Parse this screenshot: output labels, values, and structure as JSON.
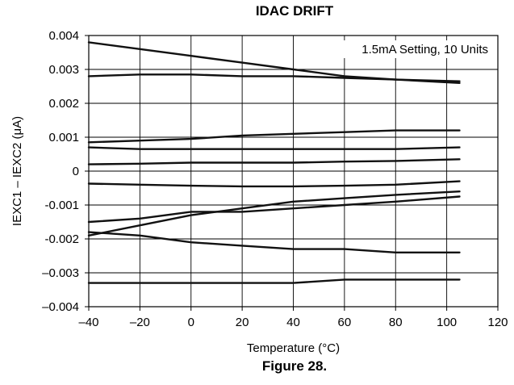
{
  "figure_caption": "Figure 28.",
  "chart_data": {
    "type": "line",
    "title": "IDAC DRIFT",
    "xlabel": "Temperature (°C)",
    "ylabel": "IEXC1 – IEXC2 (μA)",
    "xlim": [
      -40,
      120
    ],
    "ylim": [
      -0.004,
      0.004
    ],
    "xticks": [
      -40,
      -20,
      0,
      20,
      40,
      60,
      80,
      100,
      120
    ],
    "xtick_labels": [
      "–40",
      "–20",
      "0",
      "20",
      "40",
      "60",
      "80",
      "100",
      "120"
    ],
    "yticks": [
      0.004,
      0.003,
      0.002,
      0.001,
      0,
      -0.001,
      -0.002,
      -0.003,
      -0.004
    ],
    "ytick_labels": [
      "0.004",
      "0.003",
      "0.002",
      "0.001",
      "0",
      "-0.001",
      "-0.002",
      "–0.003",
      "–0.004"
    ],
    "grid": true,
    "annotation": "1.5mA Setting, 10 Units",
    "series": [
      {
        "x": [
          -40,
          -20,
          0,
          20,
          40,
          60,
          80,
          105
        ],
        "y": [
          0.0038,
          0.0036,
          0.0034,
          0.0032,
          0.003,
          0.0028,
          0.0027,
          0.0026
        ]
      },
      {
        "x": [
          -40,
          -20,
          0,
          20,
          40,
          60,
          80,
          105
        ],
        "y": [
          0.0028,
          0.00285,
          0.00285,
          0.0028,
          0.0028,
          0.00275,
          0.0027,
          0.00265
        ]
      },
      {
        "x": [
          -40,
          -20,
          0,
          20,
          40,
          60,
          80,
          105
        ],
        "y": [
          0.00085,
          0.0009,
          0.00095,
          0.00105,
          0.0011,
          0.00115,
          0.0012,
          0.0012
        ]
      },
      {
        "x": [
          -40,
          -20,
          0,
          20,
          40,
          60,
          80,
          105
        ],
        "y": [
          0.0007,
          0.00065,
          0.00065,
          0.00065,
          0.00065,
          0.00065,
          0.00065,
          0.0007
        ]
      },
      {
        "x": [
          -40,
          -20,
          0,
          20,
          40,
          60,
          80,
          105
        ],
        "y": [
          0.0002,
          0.00022,
          0.00025,
          0.00025,
          0.00025,
          0.00028,
          0.0003,
          0.00035
        ]
      },
      {
        "x": [
          -40,
          -20,
          0,
          20,
          40,
          60,
          80,
          105
        ],
        "y": [
          -0.00037,
          -0.0004,
          -0.00043,
          -0.00045,
          -0.00045,
          -0.00043,
          -0.0004,
          -0.0003
        ]
      },
      {
        "x": [
          -40,
          -20,
          0,
          20,
          40,
          60,
          80,
          105
        ],
        "y": [
          -0.0019,
          -0.0016,
          -0.0013,
          -0.0011,
          -0.0009,
          -0.0008,
          -0.0007,
          -0.0006
        ]
      },
      {
        "x": [
          -40,
          -20,
          0,
          20,
          40,
          60,
          80,
          105
        ],
        "y": [
          -0.0015,
          -0.0014,
          -0.0012,
          -0.0012,
          -0.0011,
          -0.001,
          -0.0009,
          -0.00075
        ]
      },
      {
        "x": [
          -40,
          -20,
          0,
          20,
          40,
          60,
          80,
          105
        ],
        "y": [
          -0.0018,
          -0.0019,
          -0.0021,
          -0.0022,
          -0.0023,
          -0.0023,
          -0.0024,
          -0.0024
        ]
      },
      {
        "x": [
          -40,
          -20,
          0,
          20,
          40,
          60,
          80,
          105
        ],
        "y": [
          -0.0033,
          -0.0033,
          -0.0033,
          -0.0033,
          -0.0033,
          -0.0032,
          -0.0032,
          -0.0032
        ]
      }
    ]
  }
}
